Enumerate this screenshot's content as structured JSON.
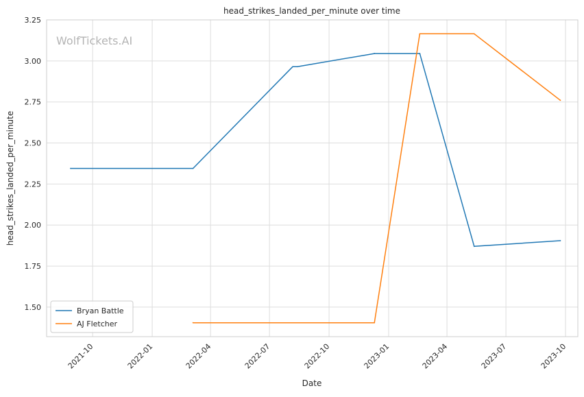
{
  "chart_data": {
    "type": "line",
    "title": "head_strikes_landed_per_minute over time",
    "xlabel": "Date",
    "ylabel": "head_strikes_landed_per_minute",
    "watermark": "WolfTickets.AI",
    "grid": true,
    "legend_position": "lower-left",
    "ylim": [
      1.32,
      3.25
    ],
    "xlim": [
      "2021-07-22",
      "2023-10-20"
    ],
    "x_ticks": [
      "2021-10",
      "2022-01",
      "2022-04",
      "2022-07",
      "2022-10",
      "2023-01",
      "2023-04",
      "2023-07",
      "2023-10"
    ],
    "y_ticks": [
      "1.50",
      "1.75",
      "2.00",
      "2.25",
      "2.50",
      "2.75",
      "3.00",
      "3.25"
    ],
    "series": [
      {
        "name": "Bryan Battle",
        "color": "#1f77b4",
        "x": [
          "2021-08-28",
          "2022-03-05",
          "2022-08-06",
          "2022-08-13",
          "2022-12-10",
          "2023-02-18",
          "2023-05-13",
          "2023-09-23"
        ],
        "y": [
          2.345,
          2.345,
          2.965,
          2.965,
          3.045,
          3.045,
          1.87,
          1.905
        ]
      },
      {
        "name": "AJ Fletcher",
        "color": "#ff7f0e",
        "x": [
          "2022-03-05",
          "2022-12-10",
          "2023-02-18",
          "2023-05-13",
          "2023-09-23"
        ],
        "y": [
          1.405,
          1.405,
          3.165,
          3.165,
          2.76
        ]
      }
    ]
  }
}
